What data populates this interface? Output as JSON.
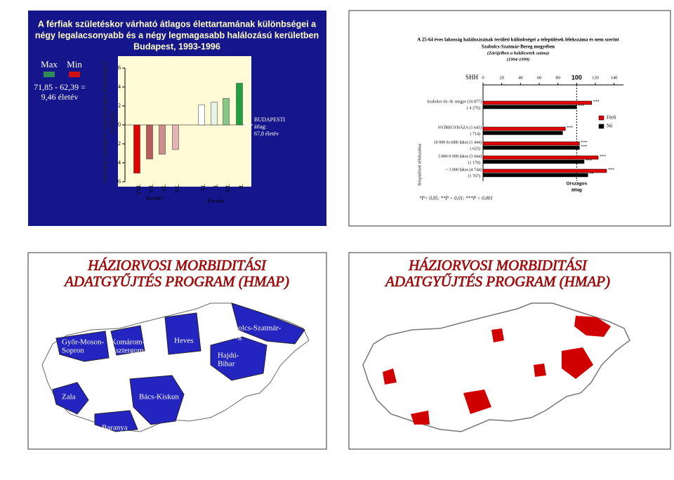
{
  "slides": [
    {
      "title": [
        "A férfiak születéskor várható átlagos élettartamának különbségei a",
        "négy legalacsonyabb és a négy legmagasabb halálozású kerületben",
        "Budapest, 1993-1996"
      ],
      "legend": [
        {
          "label": "Max",
          "color": "#2e8b57"
        },
        {
          "label": "Min",
          "color": "#d01010"
        }
      ],
      "difference": [
        "71,85 - 62,39 =",
        "9,46 életév"
      ],
      "chart": {
        "type": "bar",
        "y_label": [
          "Eltérések a budapesti várható átlagos élettartamtól",
          "(években)"
        ],
        "ylim": [
          -6,
          6
        ],
        "yticks": [
          6,
          4,
          2,
          0,
          -2,
          -4,
          -6
        ],
        "categories": [
          "VIII.",
          "VII.",
          "IX.",
          "XX.",
          "XI.",
          "I.",
          "XII.",
          "II."
        ],
        "values": [
          -5.1,
          -3.6,
          -3.1,
          -2.6,
          2.1,
          2.4,
          2.8,
          4.4
        ],
        "colors": [
          "#e00000",
          "#b85c5c",
          "#cc8c8c",
          "#e2b4b4",
          "#ffffff",
          "#e6f4e6",
          "#86c886",
          "#20a040"
        ],
        "group_labels": [
          "Kerület",
          "Kerület"
        ],
        "reference": [
          "BUDAPESTI",
          "átlag:",
          "67,8 életév"
        ]
      }
    },
    {
      "title": [
        "A 25-64 éves lakosság halálozásának területi különbségei a települések lélekszáma és nem szerint",
        "Szabolcs-Szatmár-Bereg megyében"
      ],
      "note": "(Zárójelben a halálesetek száma)",
      "period": "(1994-1999)",
      "chart": {
        "type": "barh",
        "x_label": "SHH",
        "xlim": [
          0,
          150
        ],
        "xticks": [
          0,
          20,
          40,
          60,
          80,
          100,
          120,
          140
        ],
        "reference_value": 100,
        "reference_label": [
          "Országos",
          "átlag"
        ],
        "y_label": "Települések lélekszáma",
        "categories": [
          [
            "Szabolcs-Sz.-B. megye (10 877)",
            "( 4 276)"
          ],
          [
            "NYÍREGYHÁZA (1 645)",
            "( 714)"
          ],
          [
            "10 000 és több lakos (1 444)",
            "( 625)"
          ],
          [
            "3 000-9 999 lakos (3 044)",
            "(1 170)"
          ],
          [
            "< 3 000 lakos (4 744)",
            "(1 767)"
          ]
        ],
        "series": [
          {
            "name": "Férfi",
            "color": "#e00000",
            "values": [
              116,
              88,
              103,
              123,
              132
            ],
            "stars": [
              "***",
              "***",
              "***",
              "***",
              "***"
            ]
          },
          {
            "name": "Nő",
            "color": "#000000",
            "values": [
              100,
              85,
              103,
              108,
              112
            ],
            "stars": [
              "***",
              null,
              "***",
              "***",
              "**"
            ]
          }
        ],
        "footnote": "*P< 0,05;   **P < 0,01;   ***P < 0,001"
      }
    },
    {
      "title": [
        "HÁZIORVOSI MORBIDITÁSI",
        "ADATGYŰJTÉS PROGRAM (HMAP)"
      ],
      "regions": [
        {
          "label": [
            "Győr-Moson-",
            "Sopron"
          ]
        },
        {
          "label": [
            "Komárom-",
            "Esztergom"
          ]
        },
        {
          "label": [
            "Heves"
          ]
        },
        {
          "label": [
            "Szabolcs-Szatmár-",
            "Bereg"
          ]
        },
        {
          "label": [
            "Hajdú-",
            "Bihar"
          ]
        },
        {
          "label": [
            "Zala"
          ]
        },
        {
          "label": [
            "Bács-Kiskun"
          ]
        },
        {
          "label": [
            "Baranya"
          ]
        }
      ]
    },
    {
      "title": [
        "HÁZIORVOSI MORBIDITÁSI",
        "ADATGYŰJTÉS PROGRAM (HMAP)"
      ]
    }
  ]
}
